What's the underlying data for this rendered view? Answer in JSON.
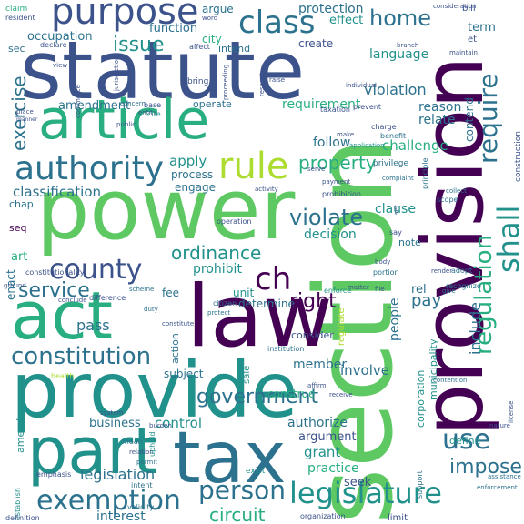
{
  "background": "#ffffff",
  "palette": {
    "purple": "#440154",
    "indigo": "#3b528b",
    "blue": "#2c728e",
    "teal": "#21918c",
    "green": "#28ae80",
    "lightgreen": "#5ec962",
    "lime": "#addc30",
    "yellow": "#fde725"
  },
  "words": [
    {
      "text": "section"
    },
    {
      "text": "provision"
    },
    {
      "text": "power"
    },
    {
      "text": "statute"
    },
    {
      "text": "law"
    },
    {
      "text": "article"
    },
    {
      "text": "provide"
    },
    {
      "text": "tax"
    },
    {
      "text": "part"
    },
    {
      "text": "act"
    },
    {
      "text": "purpose"
    },
    {
      "text": "authority"
    },
    {
      "text": "rule"
    },
    {
      "text": "class"
    },
    {
      "text": "county"
    },
    {
      "text": "shall"
    },
    {
      "text": "require"
    },
    {
      "text": "regulation"
    },
    {
      "text": "legislature"
    },
    {
      "text": "constitution"
    },
    {
      "text": "exemption"
    },
    {
      "text": "person"
    },
    {
      "text": "government"
    },
    {
      "text": "property"
    },
    {
      "text": "violate"
    },
    {
      "text": "ch"
    },
    {
      "text": "right"
    },
    {
      "text": "use"
    },
    {
      "text": "impose"
    },
    {
      "text": "home"
    },
    {
      "text": "issue"
    },
    {
      "text": "exercise"
    },
    {
      "text": "service"
    },
    {
      "text": "ordinance"
    },
    {
      "text": "circuit"
    },
    {
      "text": "legislation"
    },
    {
      "text": "pass"
    },
    {
      "text": "classification"
    },
    {
      "text": "requirement"
    },
    {
      "text": "violation"
    },
    {
      "text": "amendment"
    },
    {
      "text": "challenge"
    },
    {
      "text": "apply"
    },
    {
      "text": "language"
    },
    {
      "text": "prohibit"
    },
    {
      "text": "decision"
    },
    {
      "text": "clause"
    },
    {
      "text": "follow"
    },
    {
      "text": "reason"
    },
    {
      "text": "relate"
    },
    {
      "text": "contend"
    },
    {
      "text": "pay"
    },
    {
      "text": "include"
    },
    {
      "text": "people"
    },
    {
      "text": "business"
    },
    {
      "text": "control"
    },
    {
      "text": "grant"
    },
    {
      "text": "practice"
    },
    {
      "text": "argument"
    },
    {
      "text": "authorize"
    },
    {
      "text": "involve"
    },
    {
      "text": "member"
    },
    {
      "text": "interest"
    },
    {
      "text": "seek"
    },
    {
      "text": "define"
    },
    {
      "text": "corporation"
    },
    {
      "text": "municipality"
    },
    {
      "text": "determine"
    },
    {
      "text": "consider"
    },
    {
      "text": "subject"
    },
    {
      "text": "action"
    },
    {
      "text": "unit"
    },
    {
      "text": "note"
    },
    {
      "text": "protection"
    },
    {
      "text": "effect"
    },
    {
      "text": "function"
    },
    {
      "text": "argue"
    },
    {
      "text": "occupation"
    },
    {
      "text": "city"
    },
    {
      "text": "intend"
    },
    {
      "text": "create"
    },
    {
      "text": "operate"
    },
    {
      "text": "process"
    },
    {
      "text": "engage"
    },
    {
      "text": "fee"
    },
    {
      "text": "sec"
    },
    {
      "text": "art"
    },
    {
      "text": "enact"
    },
    {
      "text": "term"
    },
    {
      "text": "seq"
    },
    {
      "text": "rel"
    },
    {
      "text": "chap"
    },
    {
      "text": "amend"
    },
    {
      "text": "construe"
    },
    {
      "text": "regulate"
    },
    {
      "text": "sale"
    },
    {
      "text": "limit"
    },
    {
      "text": "bill"
    },
    {
      "text": "et"
    },
    {
      "text": "claim"
    },
    {
      "text": "resident"
    },
    {
      "text": "declare"
    },
    {
      "text": "word"
    },
    {
      "text": "affect"
    },
    {
      "text": "bring"
    },
    {
      "text": "privilege"
    },
    {
      "text": "prohibition"
    },
    {
      "text": "principle"
    },
    {
      "text": "enforce"
    },
    {
      "text": "institution"
    },
    {
      "text": "health"
    },
    {
      "text": "mean"
    },
    {
      "text": "relation"
    },
    {
      "text": "permit"
    },
    {
      "text": "uphold"
    },
    {
      "text": "exist"
    },
    {
      "text": "intent"
    },
    {
      "text": "validity"
    },
    {
      "text": "support"
    },
    {
      "text": "establish"
    },
    {
      "text": "emphasis"
    },
    {
      "text": "definition"
    },
    {
      "text": "constitutionality"
    },
    {
      "text": "operation"
    },
    {
      "text": "citizen"
    },
    {
      "text": "protect"
    },
    {
      "text": "recognize"
    },
    {
      "text": "difference"
    },
    {
      "text": "adopt"
    },
    {
      "text": "duty"
    },
    {
      "text": "scheme"
    },
    {
      "text": "place"
    },
    {
      "text": "manner"
    },
    {
      "text": "public"
    },
    {
      "text": "entity"
    },
    {
      "text": "view"
    },
    {
      "text": "concern"
    },
    {
      "text": "base"
    },
    {
      "text": "cite"
    },
    {
      "text": "taxation"
    },
    {
      "text": "charge"
    },
    {
      "text": "benefit"
    },
    {
      "text": "payment"
    },
    {
      "text": "body"
    },
    {
      "text": "portion"
    },
    {
      "text": "render"
    },
    {
      "text": "give"
    },
    {
      "text": "scope"
    },
    {
      "text": "collect"
    },
    {
      "text": "complaint"
    },
    {
      "text": "consideration"
    },
    {
      "text": "maintain"
    },
    {
      "text": "branch"
    },
    {
      "text": "individual"
    },
    {
      "text": "contention"
    },
    {
      "text": "license"
    },
    {
      "text": "nature"
    },
    {
      "text": "enforcement"
    },
    {
      "text": "assistance"
    },
    {
      "text": "construction"
    },
    {
      "text": "commerce"
    },
    {
      "text": "activity"
    },
    {
      "text": "file"
    },
    {
      "text": "say"
    },
    {
      "text": "ground"
    },
    {
      "text": "matter"
    },
    {
      "text": "system"
    },
    {
      "text": "conclude"
    },
    {
      "text": "burden"
    },
    {
      "text": "raise"
    },
    {
      "text": "proceeding"
    },
    {
      "text": "respect"
    },
    {
      "text": "jurisdiction"
    },
    {
      "text": "prevent"
    },
    {
      "text": "make"
    },
    {
      "text": "set"
    },
    {
      "text": "serve"
    },
    {
      "text": "constitute"
    },
    {
      "text": "organization"
    },
    {
      "text": "affirm"
    },
    {
      "text": "receive"
    },
    {
      "text": "application"
    }
  ]
}
